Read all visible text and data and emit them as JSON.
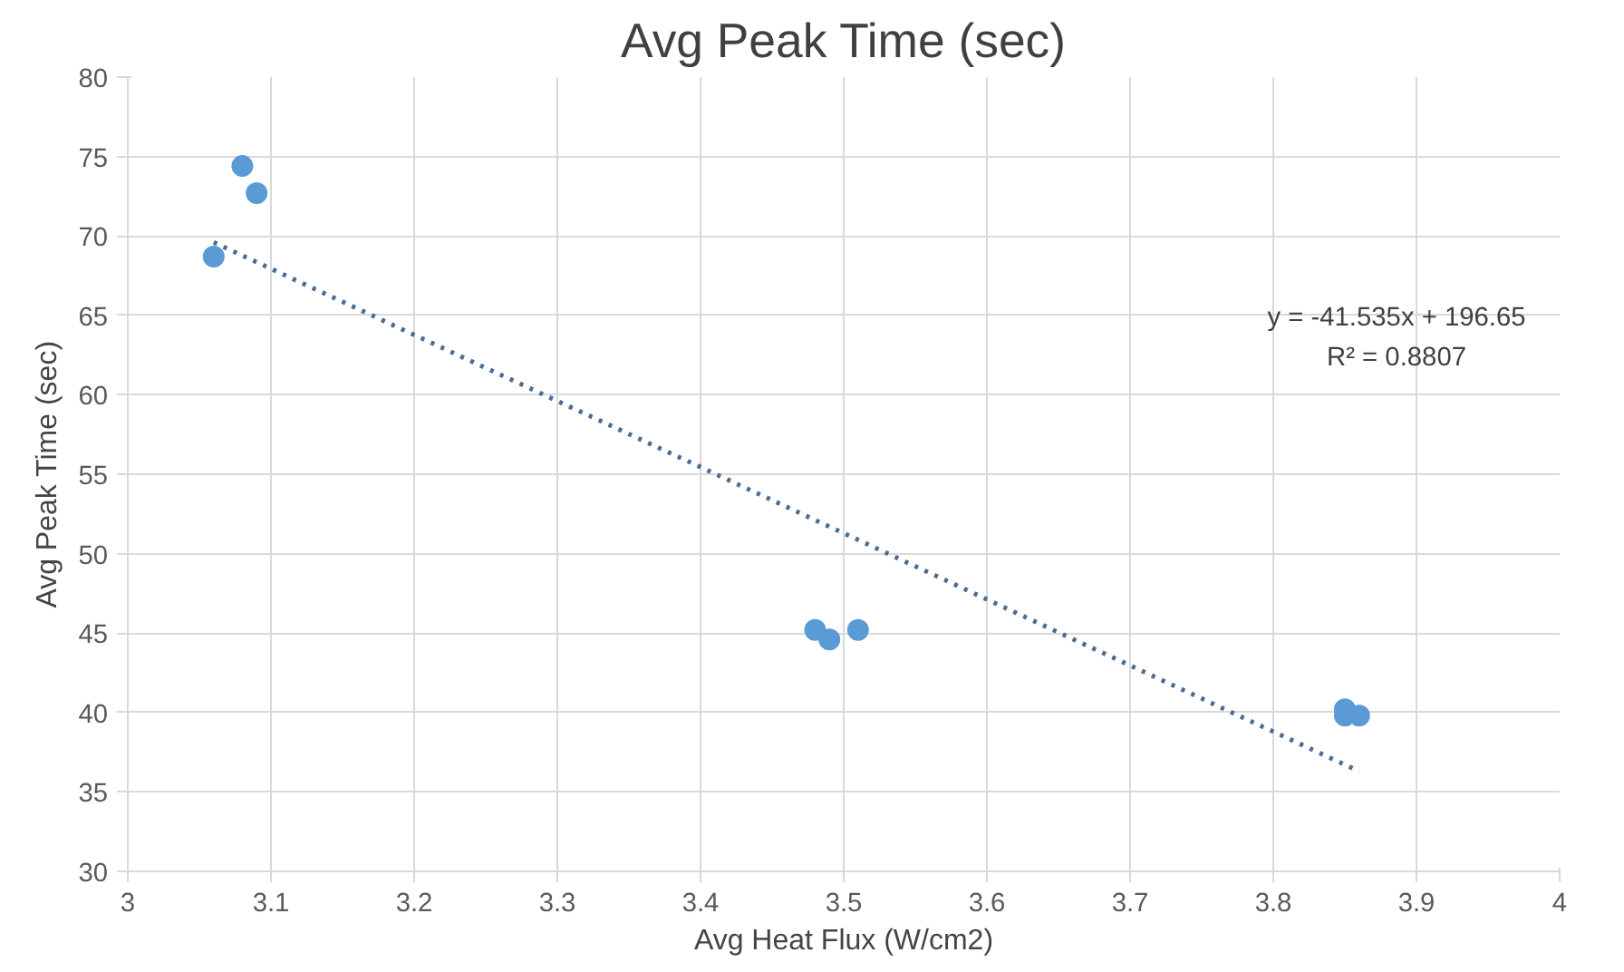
{
  "chart_data": {
    "type": "scatter",
    "title": "Avg Peak Time (sec)",
    "xlabel": "Avg Heat Flux (W/cm2)",
    "ylabel": "Avg Peak Time (sec)",
    "xlim": [
      3,
      4
    ],
    "xticks": [
      3,
      3.1,
      3.2,
      3.3,
      3.4,
      3.5,
      3.6,
      3.7,
      3.8,
      3.9,
      4
    ],
    "ylim": [
      30,
      80
    ],
    "yticks": [
      30,
      35,
      40,
      45,
      50,
      55,
      60,
      65,
      70,
      75,
      80
    ],
    "grid": true,
    "series": [
      {
        "marker": "circle",
        "color": "#5b9bd5",
        "x": [
          3.06,
          3.08,
          3.09,
          3.48,
          3.49,
          3.51,
          3.85,
          3.85,
          3.86
        ],
        "values": [
          68.7,
          74.4,
          72.7,
          45.2,
          44.6,
          45.2,
          39.8,
          40.2,
          39.8
        ]
      },
      {
        "type": "line",
        "color": "#4a6c94",
        "line_style": "dotted",
        "x": [
          3.06,
          3.86
        ],
        "values": [
          69.6,
          36.3
        ]
      }
    ],
    "annotations": [
      "y = -41.535x + 196.65",
      "R² = 0.8807"
    ]
  }
}
